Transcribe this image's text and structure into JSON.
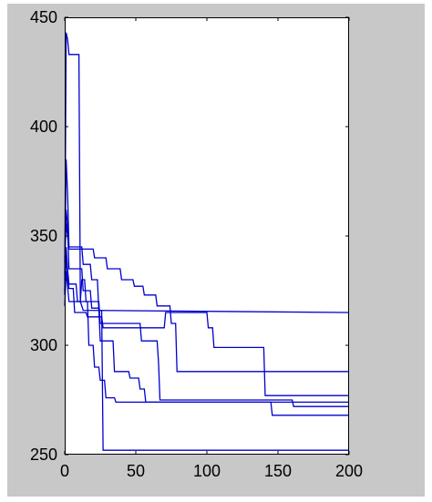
{
  "figure": {
    "background": "#c8c8c8",
    "plot_background": "#ffffff",
    "line_color": "#0000cc"
  },
  "chart_data": {
    "type": "line",
    "title": "",
    "xlabel": "",
    "ylabel": "",
    "xlim": [
      0,
      200
    ],
    "ylim": [
      250,
      450
    ],
    "xticks": [
      0,
      50,
      100,
      150,
      200
    ],
    "yticks": [
      250,
      300,
      350,
      400,
      450
    ],
    "xtick_labels": [
      "0",
      "50",
      "100",
      "150",
      "200"
    ],
    "ytick_labels": [
      "250",
      "300",
      "350",
      "400",
      "450"
    ],
    "grid": false,
    "legend": "none",
    "series": [
      {
        "points": [
          [
            0,
            323
          ],
          [
            1,
            443
          ],
          [
            2,
            440
          ],
          [
            3,
            433
          ],
          [
            10,
            433
          ],
          [
            11,
            320
          ],
          [
            13,
            316
          ],
          [
            200,
            315
          ]
        ]
      },
      {
        "points": [
          [
            0,
            332
          ],
          [
            1,
            385
          ],
          [
            2,
            370
          ],
          [
            3,
            345
          ],
          [
            12,
            345
          ],
          [
            13,
            337
          ],
          [
            18,
            337
          ],
          [
            19,
            330
          ],
          [
            23,
            330
          ],
          [
            24,
            316
          ],
          [
            26,
            316
          ],
          [
            27,
            252
          ],
          [
            200,
            252
          ]
        ]
      },
      {
        "points": [
          [
            0,
            338
          ],
          [
            1,
            362
          ],
          [
            2,
            355
          ],
          [
            3,
            335
          ],
          [
            12,
            335
          ],
          [
            13,
            325
          ],
          [
            18,
            325
          ],
          [
            19,
            317
          ],
          [
            24,
            317
          ],
          [
            25,
            302
          ],
          [
            34,
            302
          ],
          [
            35,
            288
          ],
          [
            45,
            288
          ],
          [
            46,
            285
          ],
          [
            52,
            285
          ],
          [
            53,
            280
          ],
          [
            56,
            280
          ],
          [
            57,
            274
          ],
          [
            200,
            274
          ]
        ]
      },
      {
        "points": [
          [
            0,
            340
          ],
          [
            1,
            356
          ],
          [
            2,
            350
          ],
          [
            3,
            344
          ],
          [
            20,
            344
          ],
          [
            21,
            340
          ],
          [
            29,
            340
          ],
          [
            30,
            335
          ],
          [
            39,
            335
          ],
          [
            40,
            330
          ],
          [
            48,
            330
          ],
          [
            49,
            327
          ],
          [
            55,
            327
          ],
          [
            56,
            323
          ],
          [
            64,
            323
          ],
          [
            65,
            318
          ],
          [
            74,
            318
          ],
          [
            75,
            310
          ],
          [
            78,
            310
          ],
          [
            79,
            288
          ],
          [
            140,
            288
          ],
          [
            141,
            288
          ],
          [
            200,
            288
          ]
        ]
      },
      {
        "points": [
          [
            0,
            330
          ],
          [
            1,
            345
          ],
          [
            2,
            335
          ],
          [
            3,
            328
          ],
          [
            8,
            328
          ],
          [
            9,
            320
          ],
          [
            16,
            320
          ],
          [
            17,
            300
          ],
          [
            20,
            300
          ],
          [
            21,
            290
          ],
          [
            24,
            290
          ],
          [
            25,
            284
          ],
          [
            28,
            284
          ],
          [
            29,
            276
          ],
          [
            35,
            276
          ],
          [
            36,
            274
          ],
          [
            65,
            274
          ],
          [
            66,
            274
          ],
          [
            145,
            274
          ],
          [
            146,
            268
          ],
          [
            200,
            268
          ]
        ]
      },
      {
        "points": [
          [
            0,
            325
          ],
          [
            1,
            340
          ],
          [
            2,
            332
          ],
          [
            3,
            326
          ],
          [
            6,
            326
          ],
          [
            7,
            315
          ],
          [
            15,
            315
          ],
          [
            16,
            313
          ],
          [
            26,
            313
          ],
          [
            27,
            308
          ],
          [
            54,
            308
          ],
          [
            55,
            308
          ],
          [
            70,
            308
          ],
          [
            71,
            315
          ],
          [
            100,
            315
          ],
          [
            101,
            308
          ],
          [
            104,
            308
          ],
          [
            105,
            299
          ],
          [
            140,
            299
          ],
          [
            141,
            277
          ],
          [
            200,
            277
          ]
        ]
      },
      {
        "points": [
          [
            0,
            318
          ],
          [
            1,
            334
          ],
          [
            2,
            327
          ],
          [
            3,
            320
          ],
          [
            11,
            320
          ],
          [
            12,
            330
          ],
          [
            14,
            330
          ],
          [
            15,
            320
          ],
          [
            24,
            320
          ],
          [
            25,
            310
          ],
          [
            53,
            310
          ],
          [
            54,
            302
          ],
          [
            65,
            302
          ],
          [
            66,
            292
          ],
          [
            67,
            275
          ],
          [
            160,
            275
          ],
          [
            161,
            272
          ],
          [
            200,
            272
          ]
        ]
      }
    ]
  }
}
